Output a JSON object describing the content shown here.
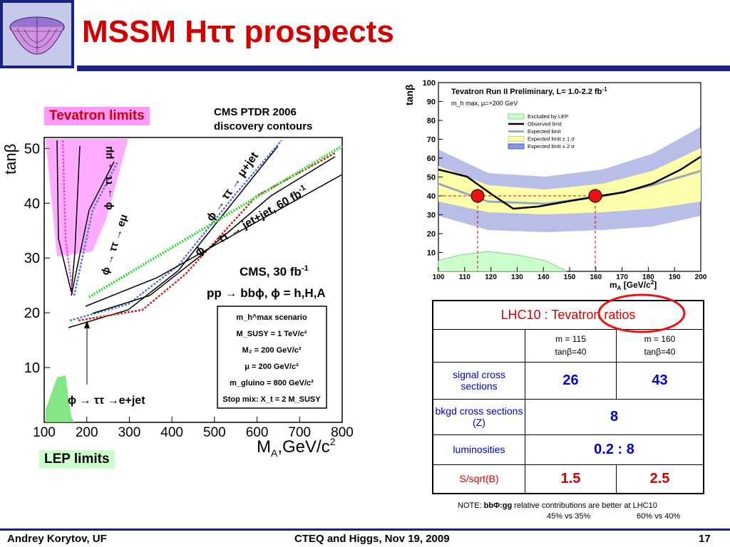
{
  "title": "MSSM Hττ prospects",
  "left_plot": {
    "badge_tevatron": "Tevatron limits",
    "badge_lep": "LEP limits",
    "cms_ptdr_line1": "CMS PTDR 2006",
    "cms_ptdr_line2": "discovery contours",
    "y_axis_label": "tanβ",
    "x_axis_label_main": "M",
    "x_axis_label_sub": "A",
    "x_axis_label_unit": ",GeV/c",
    "x_axis_label_sup": "2",
    "y_ticks": [
      "10",
      "20",
      "30",
      "40",
      "50"
    ],
    "x_ticks": [
      "100",
      "200",
      "300",
      "400",
      "500",
      "600",
      "700",
      "800"
    ],
    "curve_labels": {
      "mu_mu_jet_a": "ϕ → ττ → μ+jet",
      "mu_mu_jet_b": "ϕ → ττ → jet+jet, 60 fb",
      "mu_mu_jet_b_sup": "-1",
      "mu_mu": "ϕ → ττ → μμ",
      "e_mu": "ϕ → ττ → eμ",
      "e_jet": "ϕ → ττ →e+jet"
    },
    "cms_label": "CMS, 30 fb",
    "cms_label_sup": "-1",
    "process_label": "pp → bbϕ, ϕ = h,H,A",
    "scenario_box": [
      "m_h^max scenario",
      "M_SUSY = 1 TeV/c²",
      "M₂ = 200 GeV/c²",
      "μ = 200 GeV/c²",
      "m_gluino = 800 GeV/c²",
      "Stop mix: X_t = 2 M_SUSY"
    ]
  },
  "right_plot": {
    "title": "Tevatron Run II Preliminary, L= 1.0-2.2 fb",
    "title_sup": "-1",
    "subtitle": "m_h max, μ=+200 GeV",
    "y_axis_label": "tanβ",
    "x_axis_label": "m",
    "x_axis_label_sub": "A",
    "x_axis_label_unit": " [GeV/c",
    "x_axis_label_sup": "2",
    "x_axis_label_close": "]",
    "y_ticks": [
      "10",
      "20",
      "30",
      "40",
      "50",
      "60",
      "70",
      "80",
      "90",
      "100"
    ],
    "x_ticks": [
      "100",
      "110",
      "120",
      "130",
      "140",
      "150",
      "160",
      "170",
      "180",
      "190",
      "200"
    ],
    "legend": [
      "Excluded by LEP",
      "Observed limit",
      "Expected limit",
      "Expected limit ± 1 σ",
      "Expected limit ± 2 σ"
    ]
  },
  "table": {
    "header": "LHC10 : Tevatron ratios",
    "col1_line1": "m = 115",
    "col1_line2": "tanβ=40",
    "col2_line1": "m = 160",
    "col2_line2": "tanβ=40",
    "rows": [
      {
        "label": "signal cross sections",
        "v1": "26",
        "v2": "43"
      },
      {
        "label": "bkgd cross sections (Z)",
        "v": "8"
      },
      {
        "label": "luminosities",
        "v": "0.2 : 8"
      },
      {
        "label": "S/sqrt(B)",
        "v1": "1.5",
        "v2": "2.5"
      }
    ]
  },
  "note_prefix": "NOTE: ",
  "note_bold": "bbΦ:gg",
  "note_rest": " relative contributions are better at LHC10",
  "note_pct1": "45% vs 35%",
  "note_pct2": "60% vs 40%",
  "footer_left": "Andrey Korytov, UF",
  "footer_center": "CTEQ and Higgs, Nov 19, 2009",
  "footer_page": "17",
  "colors": {
    "title_red": "#d40000",
    "navy": "#1a237e",
    "tevatron_pink": "#ff66ff",
    "lep_green": "#66e066"
  }
}
